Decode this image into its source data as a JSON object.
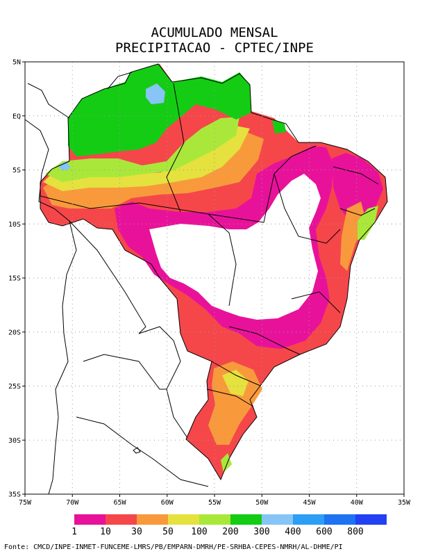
{
  "title": {
    "line1": "ACUMULADO MENSAL",
    "line2": "PRECIPITACAO - CPTEC/INPE"
  },
  "axes": {
    "lat_labels": [
      "5N",
      "EQ",
      "5S",
      "10S",
      "15S",
      "20S",
      "25S",
      "30S",
      "35S"
    ],
    "lon_labels": [
      "75W",
      "70W",
      "65W",
      "60W",
      "55W",
      "50W",
      "45W",
      "40W",
      "35W"
    ],
    "lon_range": [
      -75,
      -35
    ],
    "lat_range": [
      -35,
      5
    ]
  },
  "legend": {
    "thresholds": [
      "1",
      "10",
      "30",
      "50",
      "100",
      "200",
      "300",
      "400",
      "600",
      "800"
    ],
    "colors": [
      "#e8129a",
      "#f5474a",
      "#f89a3c",
      "#e5e13e",
      "#a9e83b",
      "#14cc14",
      "#86c5f5",
      "#2d9ef5",
      "#1f72f2",
      "#2241f2"
    ]
  },
  "source": "Fonte: CMCD/INPE-INMET-FUNCEME-LMRS/PB/EMPARN-DMRH/PE-SRHBA-CEPES-NMRH/AL-DHME/PI"
}
